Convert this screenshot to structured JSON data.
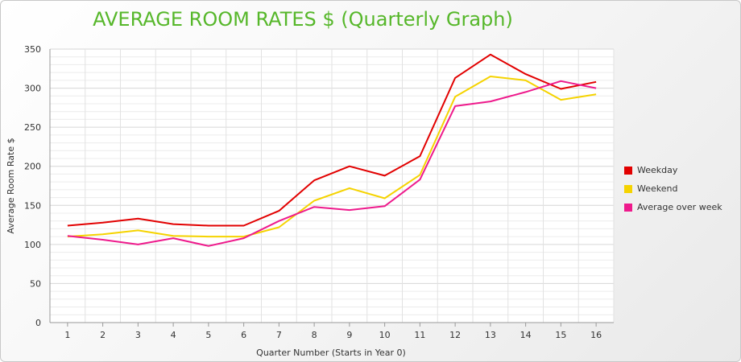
{
  "chart_data": {
    "type": "line",
    "title": "AVERAGE ROOM RATES $ (Quarterly Graph)",
    "xlabel": "Quarter Number (Starts in Year 0)",
    "ylabel": "Average Room Rate $",
    "x": [
      "1",
      "2",
      "3",
      "4",
      "5",
      "6",
      "7",
      "8",
      "9",
      "10",
      "11",
      "12",
      "13",
      "14",
      "15",
      "16"
    ],
    "ylim": [
      0,
      350
    ],
    "yticks": [
      "0",
      "50",
      "100",
      "150",
      "200",
      "250",
      "300",
      "350"
    ],
    "grid": true,
    "legend_position": "right",
    "series": [
      {
        "name": "Weekday",
        "color": "#e20000",
        "values": [
          124,
          128,
          133,
          126,
          124,
          124,
          143,
          182,
          200,
          188,
          213,
          313,
          343,
          318,
          299,
          308
        ]
      },
      {
        "name": "Weekend",
        "color": "#f5d300",
        "values": [
          110,
          113,
          118,
          111,
          110,
          110,
          122,
          156,
          172,
          159,
          189,
          289,
          315,
          310,
          285,
          292
        ]
      },
      {
        "name": "Average over week",
        "color": "#ee1a8c",
        "values": [
          111,
          106,
          100,
          108,
          98,
          108,
          130,
          148,
          144,
          149,
          183,
          277,
          283,
          295,
          309,
          300
        ]
      }
    ]
  }
}
